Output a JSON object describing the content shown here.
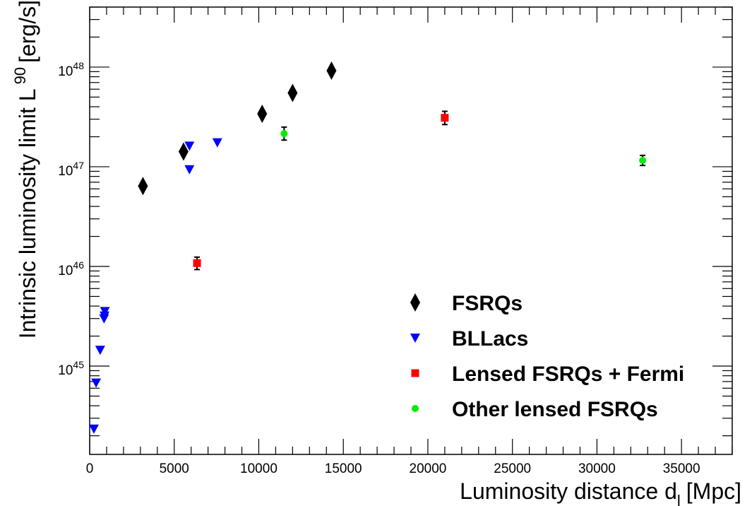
{
  "chart_data": {
    "type": "scatter",
    "xlabel": "Luminosity distance d",
    "xlabel_sub": "l",
    "xlabel_unit": "[Mpc]",
    "ylabel": "Intrinsic luminosity limit L",
    "ylabel_sup": "90",
    "ylabel_unit": "[erg/s]",
    "xlim": [
      0,
      38000
    ],
    "ylim": [
      1.3e+44,
      4e+48
    ],
    "yscale": "log",
    "x_ticks": [
      0,
      5000,
      10000,
      15000,
      20000,
      25000,
      30000,
      35000
    ],
    "x_tick_labels": [
      "0",
      "5000",
      "10000",
      "15000",
      "20000",
      "25000",
      "30000",
      "35000"
    ],
    "y_ticks": [
      1e+45,
      1e+46,
      1e+47,
      1e+48
    ],
    "y_tick_base": "10",
    "y_tick_exps": [
      "45",
      "46",
      "47",
      "48"
    ],
    "grid": false,
    "legend_position": "bottom-right",
    "series": [
      {
        "name": "FSRQs",
        "marker": "diamond",
        "color": "#000000",
        "points": [
          {
            "x": 3150,
            "y": 6.4e+46
          },
          {
            "x": 5550,
            "y": 1.42e+47
          },
          {
            "x": 10200,
            "y": 3.4e+47
          },
          {
            "x": 12000,
            "y": 5.5e+47
          },
          {
            "x": 14300,
            "y": 9.2e+47
          }
        ]
      },
      {
        "name": "BLLacs",
        "marker": "triangle-down",
        "color": "#0000ff",
        "points": [
          {
            "x": 250,
            "y": 2.35e+44
          },
          {
            "x": 380,
            "y": 6.8e+44
          },
          {
            "x": 620,
            "y": 1.45e+45
          },
          {
            "x": 850,
            "y": 3e+45
          },
          {
            "x": 880,
            "y": 3.2e+45
          },
          {
            "x": 900,
            "y": 3.55e+45
          },
          {
            "x": 5900,
            "y": 9.4e+46
          },
          {
            "x": 5900,
            "y": 1.62e+47
          },
          {
            "x": 7550,
            "y": 1.75e+47
          }
        ]
      },
      {
        "name": "Lensed FSRQs + Fermi",
        "marker": "square",
        "color": "#ff0000",
        "points": [
          {
            "x": 6350,
            "y": 1.08e+46,
            "ylo": 9.3e+45,
            "yhi": 1.24e+46
          },
          {
            "x": 21000,
            "y": 3.1e+47,
            "ylo": 2.65e+47,
            "yhi": 3.6e+47
          }
        ]
      },
      {
        "name": "Other lensed FSRQs",
        "marker": "circle",
        "color": "#00ee00",
        "points": [
          {
            "x": 11500,
            "y": 2.15e+47,
            "ylo": 1.85e+47,
            "yhi": 2.5e+47
          },
          {
            "x": 32700,
            "y": 1.16e+47,
            "ylo": 1.03e+47,
            "yhi": 1.3e+47
          }
        ]
      }
    ]
  }
}
